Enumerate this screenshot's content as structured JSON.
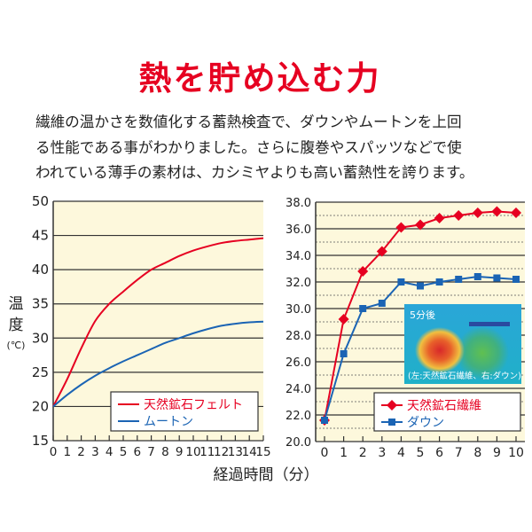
{
  "title": "熱を貯め込む力",
  "description": [
    "繊維の温かさを数値化する蓄熱検査で、ダウンやムートンを上回",
    "る性能である事がわかりました。さらに腹巻やスパッツなどで使",
    "われている薄手の素材は、カシミヤよりも高い蓄熱性を誇ります。"
  ],
  "ylabel": {
    "line1": "温",
    "line2": "度",
    "unit": "(℃)"
  },
  "xlabel": "経過時間（分）",
  "inset": {
    "caption_top": "5分後",
    "caption_bottom": "(左:天然鉱石繊維、右:ダウン)"
  },
  "colors": {
    "red": "#e60021",
    "blue": "#1b64b4",
    "plot_bg": "#fdf8dc"
  },
  "chart_data": [
    {
      "type": "line",
      "x": [
        0,
        1,
        2,
        3,
        4,
        5,
        6,
        7,
        8,
        9,
        10,
        11,
        12,
        13,
        14,
        15
      ],
      "ylim": [
        15,
        50
      ],
      "yticks": [
        15,
        20,
        25,
        30,
        35,
        40,
        45,
        50
      ],
      "grid": true,
      "legend": "bottom-right",
      "series": [
        {
          "name": "天然鉱石フェルト",
          "color": "#e60021",
          "values": [
            20,
            24,
            28.5,
            32.5,
            35,
            36.8,
            38.5,
            40,
            41,
            42,
            42.8,
            43.4,
            43.9,
            44.2,
            44.4,
            44.6
          ]
        },
        {
          "name": "ムートン",
          "color": "#1b64b4",
          "values": [
            20,
            21.7,
            23.2,
            24.5,
            25.6,
            26.6,
            27.5,
            28.4,
            29.3,
            30,
            30.7,
            31.3,
            31.8,
            32.1,
            32.3,
            32.4
          ]
        }
      ]
    },
    {
      "type": "line",
      "x": [
        0,
        1,
        2,
        3,
        4,
        5,
        6,
        7,
        8,
        9,
        10
      ],
      "ylim": [
        20,
        38
      ],
      "yticks": [
        "20.0",
        "22.0",
        "24.0",
        "26.0",
        "28.0",
        "30.0",
        "32.0",
        "34.0",
        "36.0",
        "38.0"
      ],
      "grid": true,
      "legend": "bottom-right",
      "series": [
        {
          "name": "天然鉱石繊維",
          "color": "#e60021",
          "marker": "diamond",
          "values": [
            21.6,
            29.2,
            32.8,
            34.3,
            36.1,
            36.3,
            36.8,
            37.0,
            37.2,
            37.3,
            37.2
          ]
        },
        {
          "name": "ダウン",
          "color": "#1b64b4",
          "marker": "square",
          "values": [
            21.6,
            26.6,
            30.0,
            30.4,
            32.0,
            31.7,
            32.0,
            32.2,
            32.4,
            32.3,
            32.2
          ]
        }
      ]
    }
  ]
}
